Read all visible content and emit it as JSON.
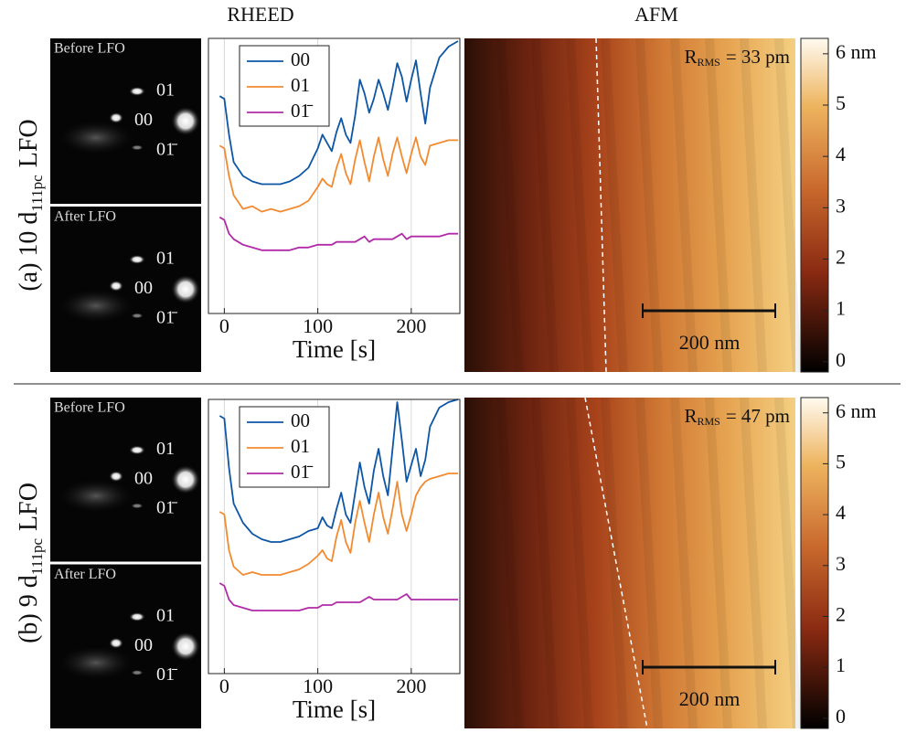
{
  "headers": {
    "rheed": "RHEED",
    "afm": "AFM"
  },
  "chart_data": [
    {
      "type": "line",
      "row_label": {
        "prefix": "(a) 10 d",
        "subscript": "111pc",
        "suffix": "LFO"
      },
      "rheed": [
        {
          "caption": "Before LFO",
          "spots": [
            "01",
            "00",
            "01̄"
          ]
        },
        {
          "caption": "After LFO",
          "spots": [
            "01",
            "00",
            "01̄"
          ]
        }
      ],
      "xlabel": "Time [s]",
      "xlim": [
        -17,
        252
      ],
      "xticks": [
        0,
        100,
        200
      ],
      "ylim": [
        0,
        100
      ],
      "grid": true,
      "legend": "upper left",
      "x": [
        -5,
        0,
        5,
        10,
        20,
        30,
        40,
        50,
        60,
        70,
        80,
        90,
        100,
        105,
        110,
        115,
        120,
        125,
        130,
        135,
        140,
        145,
        150,
        155,
        160,
        165,
        170,
        175,
        180,
        185,
        190,
        195,
        200,
        205,
        210,
        215,
        220,
        230,
        240,
        250
      ],
      "series": [
        {
          "name": "00",
          "color": "#0d56a6",
          "values": [
            79,
            78,
            65,
            55,
            50,
            48,
            47,
            47,
            47,
            48,
            50,
            53,
            60,
            65,
            62,
            59,
            66,
            71,
            65,
            62,
            72,
            85,
            80,
            73,
            78,
            85,
            80,
            74,
            82,
            91,
            86,
            77,
            85,
            92,
            80,
            69,
            82,
            93,
            97,
            99
          ]
        },
        {
          "name": "01",
          "color": "#f28a30",
          "values": [
            61,
            60,
            50,
            43,
            38,
            39,
            37,
            38,
            37,
            38,
            39,
            41,
            46,
            49,
            47,
            46,
            53,
            58,
            51,
            47,
            56,
            63,
            55,
            48,
            57,
            64,
            56,
            50,
            58,
            64,
            57,
            51,
            58,
            64,
            57,
            54,
            61,
            62,
            63,
            63
          ]
        },
        {
          "name": "01̄",
          "color": "#b12ba8",
          "values": [
            35,
            34,
            29,
            27,
            25,
            24,
            23,
            23,
            23,
            23,
            24,
            24,
            25,
            25,
            25,
            25,
            26,
            26,
            26,
            26,
            26,
            27,
            28,
            26,
            27,
            27,
            27,
            27,
            27,
            28,
            29,
            27,
            28,
            28,
            28,
            28,
            28,
            28,
            29,
            29
          ]
        }
      ],
      "afm": {
        "roughness": {
          "main": "R",
          "sub": "RMS",
          "rest": "= 33 pm"
        },
        "scale_bar": "200 nm"
      },
      "colorbar_lim": [
        -0.2,
        6.3
      ],
      "colorbar_ticks": [
        0,
        1,
        2,
        3,
        4,
        5,
        {
          "value": 6,
          "label": "6 nm"
        }
      ]
    },
    {
      "type": "line",
      "row_label": {
        "prefix": "(b) 9 d",
        "subscript": "111pc",
        "suffix": "LFO"
      },
      "rheed": [
        {
          "caption": "Before LFO",
          "spots": [
            "01",
            "00",
            "01̄"
          ]
        },
        {
          "caption": "After LFO",
          "spots": [
            "01",
            "00",
            "01̄"
          ]
        }
      ],
      "xlabel": "Time [s]",
      "xlim": [
        -17,
        252
      ],
      "xticks": [
        0,
        100,
        200
      ],
      "ylim": [
        0,
        100
      ],
      "grid": true,
      "legend": "upper left",
      "x": [
        -5,
        0,
        5,
        10,
        20,
        30,
        40,
        50,
        60,
        70,
        80,
        90,
        100,
        105,
        110,
        115,
        120,
        125,
        130,
        135,
        140,
        145,
        150,
        155,
        160,
        165,
        170,
        175,
        180,
        185,
        190,
        195,
        200,
        205,
        210,
        215,
        220,
        230,
        240,
        250
      ],
      "series": [
        {
          "name": "00",
          "color": "#0d56a6",
          "values": [
            94,
            93,
            75,
            62,
            55,
            51,
            49,
            48,
            48,
            49,
            50,
            52,
            53,
            57,
            54,
            53,
            60,
            66,
            58,
            55,
            66,
            77,
            68,
            62,
            74,
            82,
            72,
            65,
            82,
            99,
            85,
            70,
            76,
            82,
            72,
            78,
            90,
            97,
            99,
            100
          ]
        },
        {
          "name": "01",
          "color": "#f28a30",
          "values": [
            59,
            58,
            45,
            39,
            36,
            37,
            36,
            36,
            36,
            37,
            38,
            40,
            43,
            45,
            42,
            41,
            50,
            56,
            48,
            44,
            55,
            63,
            55,
            48,
            58,
            66,
            57,
            51,
            60,
            70,
            58,
            52,
            58,
            65,
            68,
            70,
            71,
            72,
            73,
            73
          ]
        },
        {
          "name": "01̄",
          "color": "#b12ba8",
          "values": [
            33,
            32,
            27,
            25,
            24,
            23,
            23,
            23,
            23,
            23,
            23,
            24,
            24,
            25,
            25,
            25,
            26,
            26,
            26,
            26,
            26,
            26,
            27,
            28,
            27,
            27,
            27,
            27,
            27,
            27,
            28,
            29,
            27,
            27,
            27,
            27,
            27,
            27,
            27,
            27
          ]
        }
      ],
      "afm": {
        "roughness": {
          "main": "R",
          "sub": "RMS",
          "rest": "= 47 pm"
        },
        "scale_bar": "200 nm"
      },
      "colorbar_lim": [
        -0.2,
        6.3
      ],
      "colorbar_ticks": [
        0,
        1,
        2,
        3,
        4,
        5,
        {
          "value": 6,
          "label": "6 nm"
        }
      ]
    }
  ]
}
